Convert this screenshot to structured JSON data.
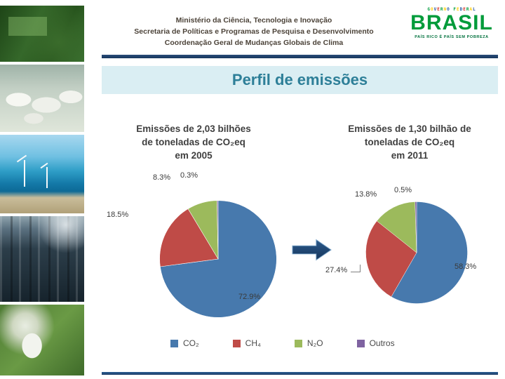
{
  "header": {
    "line1": "Ministério da Ciência, Tecnologia e Inovação",
    "line2": "Secretaria de Políticas e Programas de Pesquisa e Desenvolvimento",
    "line3": "Coordenação Geral de Mudanças Globais de Clima",
    "logo": {
      "government": "GOVERNO FEDERAL",
      "brand": "BRASIL",
      "tagline": "PAÍS RICO É PAÍS SEM POBREZA"
    }
  },
  "title": "Perfil de emissões",
  "chart_data": [
    {
      "type": "pie",
      "title": "Emissões de 2,03 bilhões de toneladas de CO₂eq em 2005",
      "title_lines": [
        "Emissões de 2,03 bilhões",
        "de toneladas de CO₂eq",
        "em 2005"
      ],
      "categories": [
        "CO₂",
        "CH₄",
        "N₂O",
        "Outros"
      ],
      "values": [
        72.9,
        18.5,
        8.3,
        0.3
      ],
      "value_labels": [
        "72.9%",
        "18.5%",
        "8.3%",
        "0.3%"
      ],
      "colors": [
        "#4779ad",
        "#bf4b47",
        "#9cba5c",
        "#7f63a1"
      ],
      "legend_position": "bottom"
    },
    {
      "type": "pie",
      "title": "Emissões de 1,30 bilhão de toneladas de CO₂eq em 2011",
      "title_lines": [
        "Emissões de 1,30 bilhão de",
        "toneladas de CO₂eq",
        "em 2011"
      ],
      "categories": [
        "CO₂",
        "CH₄",
        "N₂O",
        "Outros"
      ],
      "values": [
        58.3,
        27.4,
        13.8,
        0.5
      ],
      "value_labels": [
        "58.3%",
        "27.4%",
        "13.8%",
        "0.5%"
      ],
      "colors": [
        "#4779ad",
        "#bf4b47",
        "#9cba5c",
        "#7f63a1"
      ],
      "legend_position": "bottom"
    }
  ],
  "legend": {
    "items": [
      {
        "label": "CO₂",
        "color": "#4779ad"
      },
      {
        "label": "CH₄",
        "color": "#bf4b47"
      },
      {
        "label": "N₂O",
        "color": "#9cba5c"
      },
      {
        "label": "Outros",
        "color": "#7f63a1"
      }
    ]
  },
  "colors": {
    "title_teal": "#2d7f98",
    "band_blue": "#daeef3",
    "rule_navy": "#16365c",
    "brand_green": "#009b3a"
  }
}
